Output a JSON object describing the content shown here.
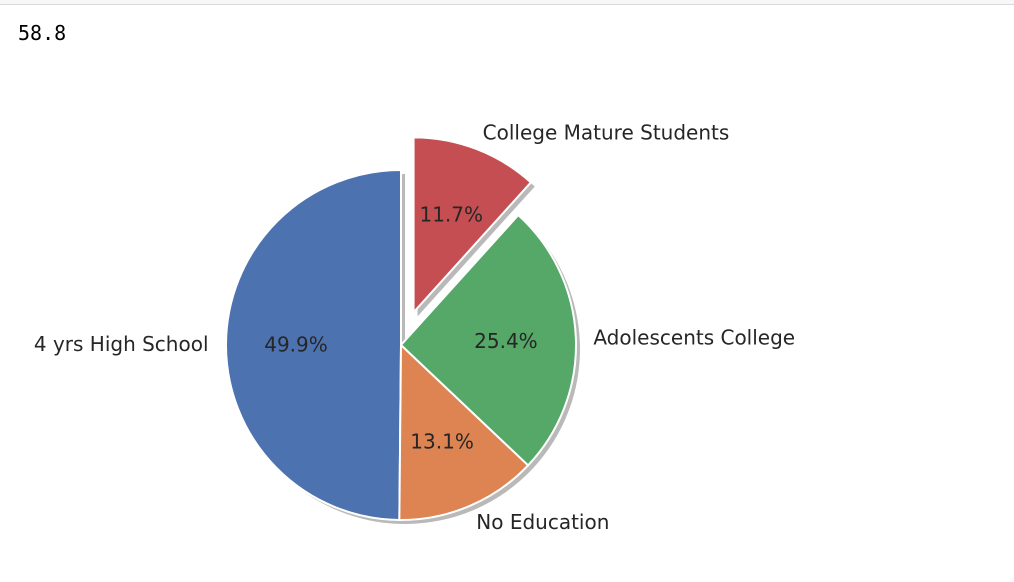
{
  "cell_output": {
    "value_text": "58.8"
  },
  "colors": {
    "blue": "#4c72b0",
    "orange": "#dd8452",
    "green": "#55a868",
    "red": "#c44e52",
    "shadow": "#7f7f7f",
    "edge": "#ffffff"
  },
  "chart_data": {
    "type": "pie",
    "startangle": 90,
    "counterclock": true,
    "shadow": true,
    "slices": [
      {
        "label": "4 yrs High School",
        "value": 49.9,
        "pct_text": "49.9%",
        "color": "#4c72b0",
        "explode": 0
      },
      {
        "label": "No Education",
        "value": 13.1,
        "pct_text": "13.1%",
        "color": "#dd8452",
        "explode": 0
      },
      {
        "label": "Adolescents College",
        "value": 25.4,
        "pct_text": "25.4%",
        "color": "#55a868",
        "explode": 0
      },
      {
        "label": "College Mature Students",
        "value": 11.7,
        "pct_text": "11.7%",
        "color": "#c44e52",
        "explode": 1
      }
    ]
  }
}
